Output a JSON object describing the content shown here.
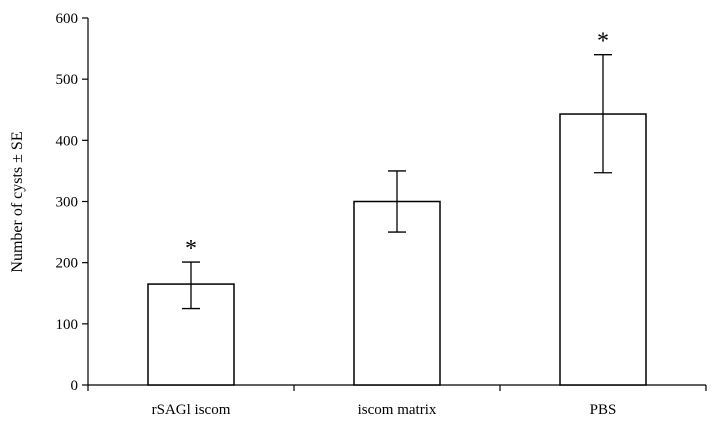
{
  "chart_data": {
    "type": "bar",
    "title": "",
    "xlabel": "",
    "ylabel": "Number of cysts ± SE",
    "ylim": [
      0,
      600
    ],
    "yticks": [
      0,
      100,
      200,
      300,
      400,
      500,
      600
    ],
    "categories": [
      "rSAGl iscom",
      "iscom matrix",
      "PBS"
    ],
    "values": [
      165,
      300,
      443
    ],
    "error_low": [
      125,
      250,
      347
    ],
    "error_high": [
      201,
      350,
      540
    ],
    "annotations": [
      "*",
      "",
      "*"
    ],
    "grid": false,
    "legend": "none"
  }
}
